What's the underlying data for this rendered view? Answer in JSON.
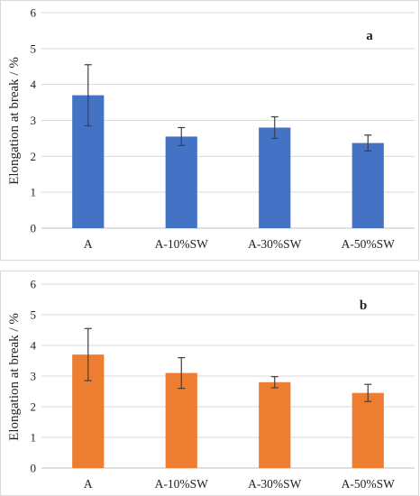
{
  "chart_data": [
    {
      "type": "bar",
      "panel_label": "a",
      "categories": [
        "A",
        "A-10%SW",
        "A-30%SW",
        "A-50%SW"
      ],
      "values": [
        3.7,
        2.55,
        2.8,
        2.37
      ],
      "error": [
        0.85,
        0.25,
        0.3,
        0.22
      ],
      "ylabel": "Elongation at break / %",
      "ylim": [
        0,
        6
      ],
      "yticks": [
        0,
        1,
        2,
        3,
        4,
        5,
        6
      ],
      "grid": true,
      "bar_color": "#4472C4"
    },
    {
      "type": "bar",
      "panel_label": "b",
      "categories": [
        "A",
        "A-10%SW",
        "A-30%SW",
        "A-50%SW"
      ],
      "values": [
        3.7,
        3.1,
        2.8,
        2.45
      ],
      "error": [
        0.85,
        0.5,
        0.18,
        0.28
      ],
      "ylabel": "Elongation at break / %",
      "ylim": [
        0,
        6
      ],
      "yticks": [
        0,
        1,
        2,
        3,
        4,
        5,
        6
      ],
      "grid": true,
      "bar_color": "#ED7D31"
    }
  ]
}
